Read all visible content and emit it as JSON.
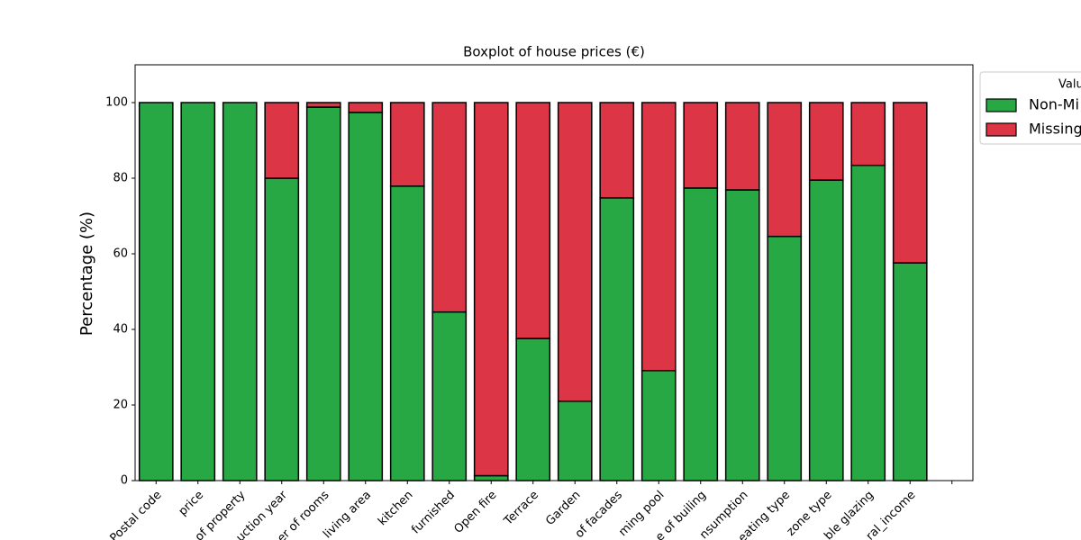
{
  "chart_data": {
    "type": "stacked_bar",
    "title": "Boxplot of house prices (€)",
    "y_label": "Percentage (%)",
    "categories": [
      "Postal code",
      "price",
      "of property",
      "uction year",
      "er of rooms",
      "living area",
      "kitchen",
      "furnished",
      "Open fire",
      "Terrace",
      "Garden",
      "of facades",
      "ming pool",
      "e of builing",
      "nsumption",
      "eating type",
      "zone type",
      "ble glazing",
      "ral_income",
      null
    ],
    "series": [
      {
        "name": "Non-Mi",
        "color": "#28a745",
        "values": [
          100,
          100,
          100,
          80,
          98.8,
          97.4,
          77.9,
          44.6,
          1.3,
          37.6,
          21,
          74.8,
          29.1,
          77.4,
          76.9,
          64.6,
          79.5,
          83.4,
          57.6,
          null
        ]
      },
      {
        "name": "Missing",
        "color": "#dc3545",
        "values": [
          0,
          0,
          0,
          20,
          1.2,
          2.6,
          22.1,
          55.4,
          98.7,
          62.4,
          79,
          25.2,
          70.9,
          22.6,
          23.1,
          35.4,
          20.5,
          16.6,
          42.4,
          null
        ]
      }
    ],
    "legend_title": "Valu",
    "legend_position": "outside upper right",
    "ylim": [
      0,
      110
    ],
    "yticks": [
      0,
      20,
      40,
      60,
      80,
      100
    ],
    "grid": false
  }
}
